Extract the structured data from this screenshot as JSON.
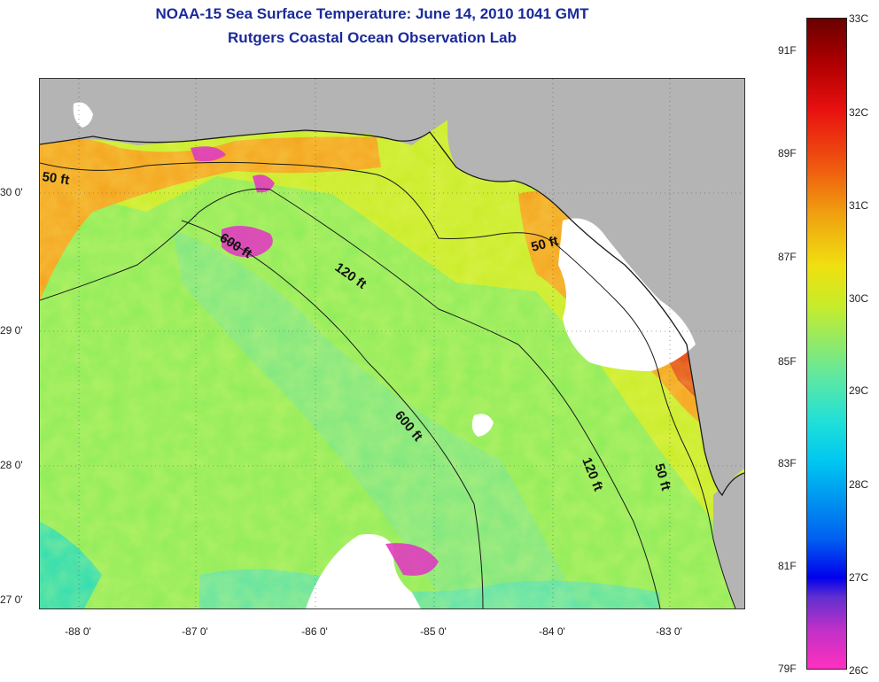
{
  "title": {
    "line1": "NOAA-15 Sea Surface Temperature:  June 14, 2010 1041 GMT",
    "line2": "Rutgers Coastal Ocean Observation Lab"
  },
  "map": {
    "latitude_labels": [
      "30 0'",
      "29 0'",
      "28 0'",
      "27 0'"
    ],
    "longitude_labels": [
      "-88 0'",
      "-87 0'",
      "-86 0'",
      "-85 0'",
      "-84 0'",
      "-83 0'"
    ],
    "contour_labels": [
      "50 ft",
      "600 ft",
      "120 ft",
      "50 ft",
      "600 ft",
      "120 ft",
      "50 ft"
    ],
    "colors": {
      "land": "#b4b4b4",
      "warm_shelf": "#f4a21c",
      "mid_water": "#c8ec28",
      "offshore": "#8cec5a",
      "cool_water": "#28dcb4",
      "cloud": "#ffffff",
      "anomaly": "#e03cc0",
      "contour": "#1a1a1a"
    }
  },
  "colorbar": {
    "celsius_labels": [
      "33C",
      "32C",
      "31C",
      "30C",
      "29C",
      "28C",
      "27C",
      "26C"
    ],
    "fahrenheit_labels": [
      "91F",
      "89F",
      "87F",
      "85F",
      "83F",
      "81F",
      "79F"
    ],
    "range_c": [
      26,
      33
    ]
  }
}
